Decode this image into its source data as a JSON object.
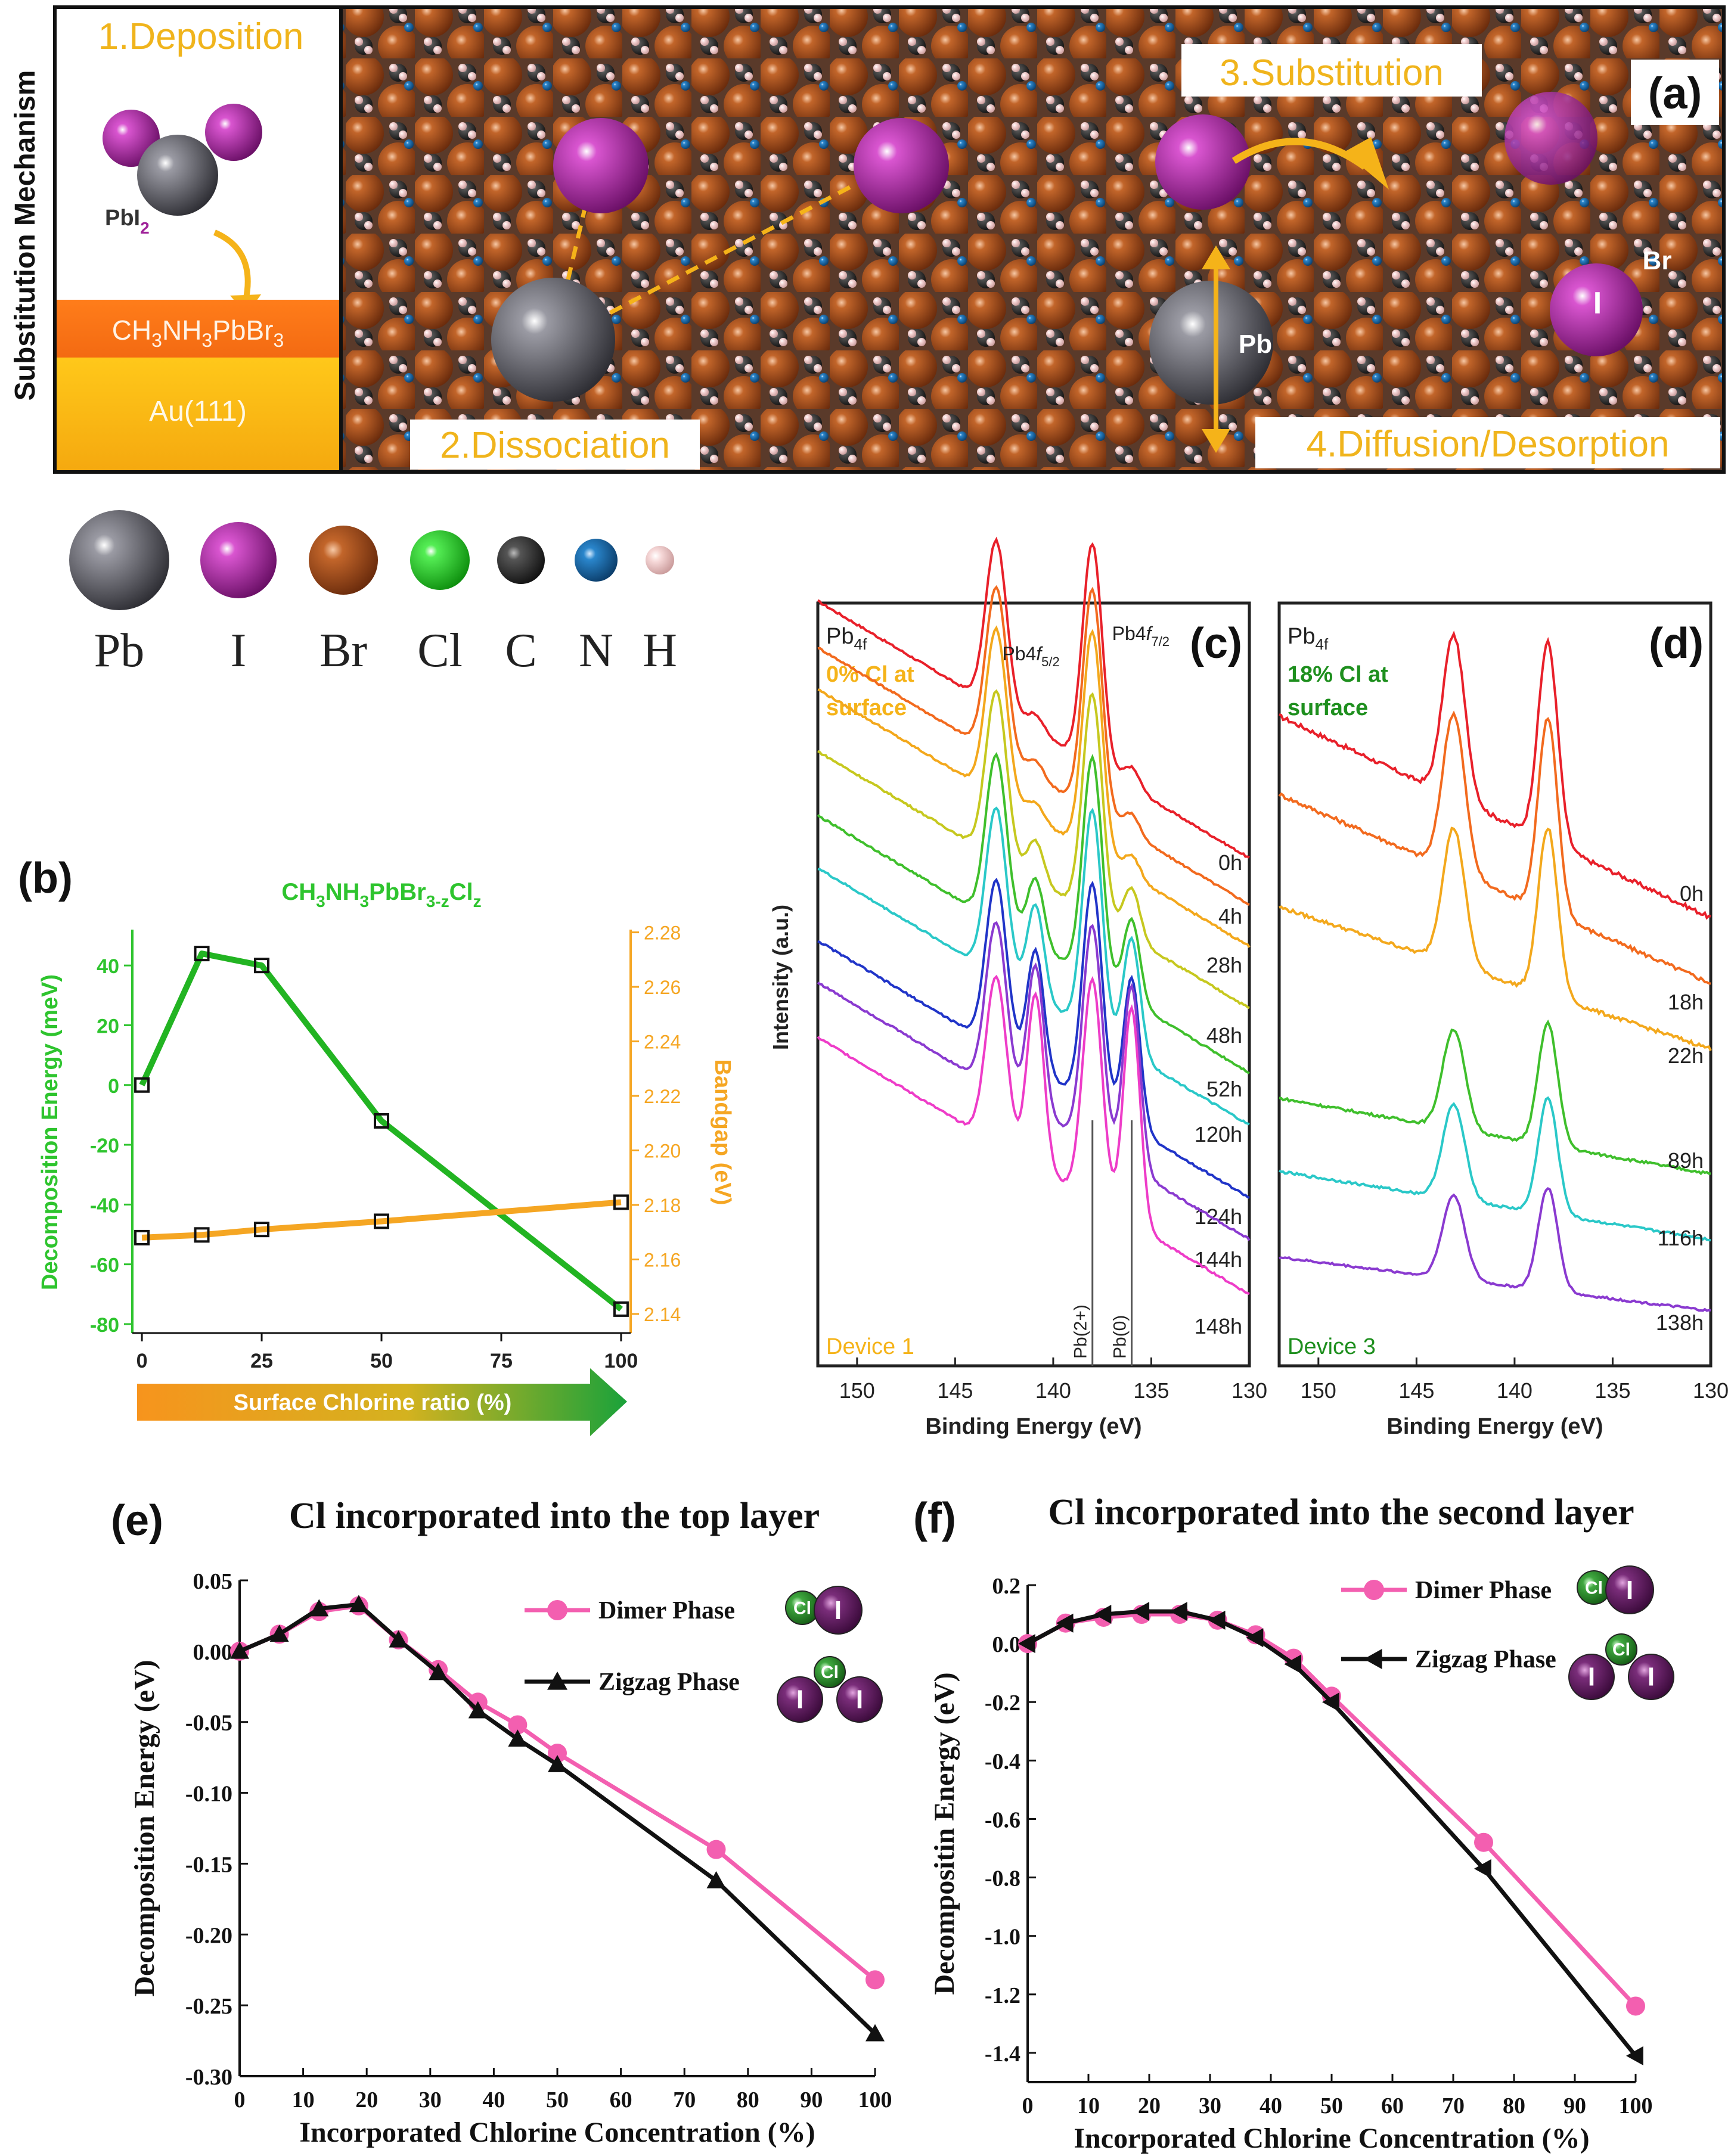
{
  "panel_a": {
    "label": "(a)",
    "side_title": "Substitution Mechanism",
    "step1": "1.Deposition",
    "step2": "2.Dissociation",
    "step3": "3.Substitution",
    "step4": "4.Diffusion/Desorption",
    "molecule": "PbI",
    "molecule_sub": "2",
    "layer_top": "CH",
    "layer_top_parts": [
      "CH",
      "3",
      "NH",
      "3",
      "PbBr",
      "3"
    ],
    "layer_bottom": "Au(111)",
    "atom_labels": {
      "pb": "Pb",
      "i": "I",
      "br": "Br"
    }
  },
  "legend_atoms": {
    "items": [
      {
        "label": "Pb",
        "color": "#4a4a50"
      },
      {
        "label": "I",
        "color": "#a0239a"
      },
      {
        "label": "Br",
        "color": "#9b4a1a"
      },
      {
        "label": "Cl",
        "color": "#22c322"
      },
      {
        "label": "C",
        "color": "#333333"
      },
      {
        "label": "N",
        "color": "#1f6fb0"
      },
      {
        "label": "H",
        "color": "#f1c8c8"
      }
    ]
  },
  "chart_data": [
    {
      "panel": "(b)",
      "type": "line",
      "title_parts": [
        "CH",
        "3",
        "NH",
        "3",
        "PbBr",
        "3-z",
        "Cl",
        "z"
      ],
      "xlabel": "Surface Chlorine ratio (%)",
      "ylabel_left": "Decomposition Energy  (meV)",
      "ylabel_right": "Bandgap (eV)",
      "x_ticks": [
        0,
        25,
        50,
        75,
        100
      ],
      "xlim": [
        -2,
        102
      ],
      "y_left_ticks": [
        40,
        20,
        0,
        -20,
        -40,
        -60,
        -80
      ],
      "ylim_left": [
        -83,
        52
      ],
      "y_right_ticks": [
        2.28,
        2.26,
        2.24,
        2.22,
        2.2,
        2.18,
        2.16,
        2.14
      ],
      "ylim_right": [
        2.133,
        2.281
      ],
      "series": [
        {
          "axis": "left",
          "color": "#22b422",
          "x": [
            0,
            12.5,
            25,
            50,
            100
          ],
          "y": [
            0,
            44,
            40,
            -12,
            -75
          ]
        },
        {
          "axis": "right",
          "color": "#f5a623",
          "x": [
            0,
            12.5,
            25,
            50,
            100
          ],
          "y": [
            2.168,
            2.169,
            2.171,
            2.174,
            2.181
          ]
        }
      ]
    },
    {
      "panel": "(c)",
      "type": "line",
      "header": "Pb",
      "header_sub": "4f",
      "note": [
        "0% Cl at",
        "surface"
      ],
      "device": "Device 1",
      "peak1": "Pb4",
      "peak1_f": "f",
      "peak1_sub": "5/2",
      "peak2": "Pb4",
      "peak2_f": "f",
      "peak2_sub": "7/2",
      "marker1": "Pb(2+)",
      "marker2": "Pb(0)",
      "ylabel": "Intensity (a.u.)",
      "xlabel": "Binding Energy (eV)",
      "x_ticks": [
        150,
        145,
        140,
        135,
        130
      ],
      "xlim": [
        152,
        130
      ],
      "series": [
        {
          "name": "0h",
          "color": "#e8202a"
        },
        {
          "name": "4h",
          "color": "#f26a1e"
        },
        {
          "name": "28h",
          "color": "#f3a81c"
        },
        {
          "name": "48h",
          "color": "#c6c81f"
        },
        {
          "name": "52h",
          "color": "#3fbf2c"
        },
        {
          "name": "120h",
          "color": "#2ac8c8"
        },
        {
          "name": "124h",
          "color": "#2034c8"
        },
        {
          "name": "144h",
          "color": "#8a3ad0"
        },
        {
          "name": "148h",
          "color": "#ee3cc8"
        }
      ]
    },
    {
      "panel": "(d)",
      "type": "line",
      "header": "Pb",
      "header_sub": "4f",
      "note": [
        "18% Cl at",
        "surface"
      ],
      "device": "Device 3",
      "xlabel": "Binding Energy (eV)",
      "x_ticks": [
        150,
        145,
        140,
        135,
        130
      ],
      "xlim": [
        152,
        130
      ],
      "series": [
        {
          "name": "0h",
          "color": "#e8202a"
        },
        {
          "name": "18h",
          "color": "#f26a1e"
        },
        {
          "name": "22h",
          "color": "#f3a81c"
        },
        {
          "name": "89h",
          "color": "#3fbf2c"
        },
        {
          "name": "116h",
          "color": "#2ac8c8"
        },
        {
          "name": "138h",
          "color": "#8a3ad0"
        }
      ]
    },
    {
      "panel": "(e)",
      "type": "line",
      "title": "Cl incorporated into the top layer",
      "xlabel": "Incorporated Chlorine Concentration (%)",
      "ylabel": "Decomposition Energy (eV)",
      "x_ticks": [
        0,
        10,
        20,
        30,
        40,
        50,
        60,
        70,
        80,
        90,
        100
      ],
      "xlim": [
        0,
        100
      ],
      "y_ticks": [
        0.05,
        0.0,
        -0.05,
        -0.1,
        -0.15,
        -0.2,
        -0.25,
        -0.3
      ],
      "y_tick_labels": [
        "0.05",
        "0.00",
        "-0.05",
        "-0.10",
        "-0.15",
        "-0.20",
        "-0.25",
        "-0.30"
      ],
      "ylim": [
        -0.3,
        0.05
      ],
      "series": [
        {
          "name": "Dimer Phase",
          "color": "#f35fb0",
          "marker": "circle",
          "x": [
            0,
            6.25,
            12.5,
            18.75,
            25,
            31.25,
            37.5,
            43.75,
            50,
            75,
            100
          ],
          "y": [
            0.0,
            0.012,
            0.028,
            0.032,
            0.008,
            -0.013,
            -0.036,
            -0.052,
            -0.072,
            -0.14,
            -0.232
          ]
        },
        {
          "name": "Zigzag Phase",
          "color": "#111111",
          "marker": "triangle",
          "x": [
            0,
            6.25,
            12.5,
            18.75,
            25,
            31.25,
            37.5,
            43.75,
            50,
            75,
            100
          ],
          "y": [
            0.0,
            0.012,
            0.03,
            0.033,
            0.008,
            -0.015,
            -0.042,
            -0.062,
            -0.08,
            -0.162,
            -0.27
          ]
        }
      ],
      "legend_icon_labels": {
        "cl": "Cl",
        "i": "I"
      }
    },
    {
      "panel": "(f)",
      "type": "line",
      "title": "Cl incorporated into the second layer",
      "xlabel": "Incorporated Chlorine Concentration (%)",
      "ylabel": "Decompositin Energy (eV)",
      "x_ticks": [
        0,
        10,
        20,
        30,
        40,
        50,
        60,
        70,
        80,
        90,
        100
      ],
      "xlim": [
        0,
        100
      ],
      "y_ticks": [
        0.2,
        0.0,
        -0.2,
        -0.4,
        -0.6,
        -0.8,
        -1.0,
        -1.2,
        -1.4
      ],
      "y_tick_labels": [
        "0.2",
        "0.0",
        "-0.2",
        "-0.4",
        "-0.6",
        "-0.8",
        "-1.0",
        "-1.2",
        "-1.4"
      ],
      "ylim": [
        -1.5,
        0.2
      ],
      "series": [
        {
          "name": "Dimer Phase",
          "color": "#f35fb0",
          "marker": "circle",
          "x": [
            0,
            6.25,
            12.5,
            18.75,
            25,
            31.25,
            37.5,
            43.75,
            50,
            75,
            100
          ],
          "y": [
            0.0,
            0.07,
            0.09,
            0.1,
            0.1,
            0.08,
            0.03,
            -0.05,
            -0.18,
            -0.68,
            -1.24
          ]
        },
        {
          "name": "Zigzag Phase",
          "color": "#111111",
          "marker": "left-triangle",
          "x": [
            0,
            6.25,
            12.5,
            18.75,
            25,
            31.25,
            37.5,
            43.75,
            50,
            75,
            100
          ],
          "y": [
            0.0,
            0.07,
            0.1,
            0.11,
            0.11,
            0.08,
            0.02,
            -0.07,
            -0.2,
            -0.77,
            -1.41
          ]
        }
      ],
      "legend_icon_labels": {
        "cl": "Cl",
        "i": "I"
      }
    }
  ]
}
